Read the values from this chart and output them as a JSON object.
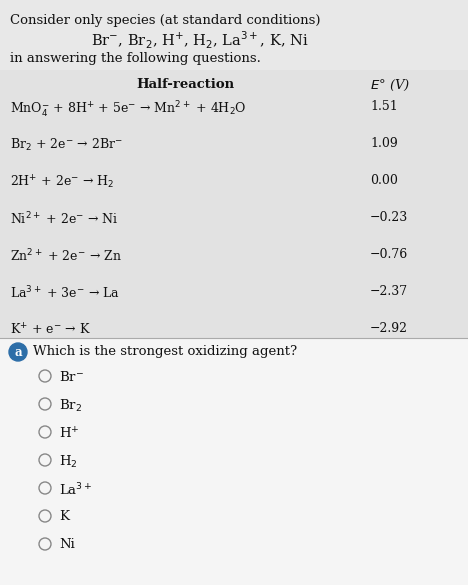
{
  "bg_color": "#e8e8e8",
  "white_bg": "#f2f2f2",
  "text_color": "#111111",
  "title_line1": "Consider only species (at standard conditions)",
  "species_line": "Br$^{-}$, Br$_2$, H$^{+}$, H$_2$, La$^{3+}$, K, Ni",
  "in_answering": "in answering the following questions.",
  "col_header_reaction": "Half-reaction",
  "col_header_E": "$E$° (V)",
  "reactions": [
    {
      "eq": "MnO$_4^{-}$ + 8H$^{+}$ + 5e$^{-}$ → Mn$^{2+}$ + 4H$_2$O",
      "E": "1.51"
    },
    {
      "eq": "Br$_2$ + 2e$^{-}$ → 2Br$^{-}$",
      "E": "1.09"
    },
    {
      "eq": "2H$^{+}$ + 2e$^{-}$ → H$_2$",
      "E": "0.00"
    },
    {
      "eq": "Ni$^{2+}$ + 2e$^{-}$ → Ni",
      "E": "−0.23"
    },
    {
      "eq": "Zn$^{2+}$ + 2e$^{-}$ → Zn",
      "E": "−0.76"
    },
    {
      "eq": "La$^{3+}$ + 3e$^{-}$ → La",
      "E": "−2.37"
    },
    {
      "eq": "K$^{+}$ + e$^{-}$ → K",
      "E": "−2.92"
    }
  ],
  "question_label": "a",
  "question_label_bg": "#2d6ea8",
  "question_text": "Which is the strongest oxidizing agent?",
  "choices": [
    "Br$^{-}$",
    "Br$_2$",
    "H$^{+}$",
    "H$_2$",
    "La$^{3+}$",
    "K",
    "Ni"
  ],
  "table_bg": "#e2e2e2",
  "font_size_main": 9.5,
  "font_size_species": 10.5,
  "font_size_header": 9.5,
  "font_size_reaction": 9,
  "font_size_choice": 9.5,
  "dpi": 100,
  "fig_w": 4.68,
  "fig_h": 5.85
}
